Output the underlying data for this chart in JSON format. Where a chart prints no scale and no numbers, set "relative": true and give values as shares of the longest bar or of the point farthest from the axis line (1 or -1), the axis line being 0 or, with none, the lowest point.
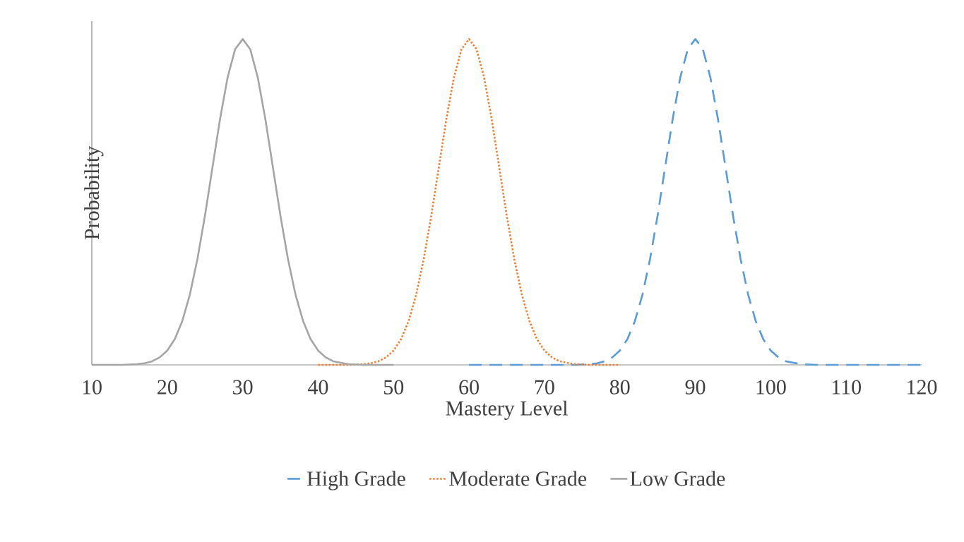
{
  "chart_data": {
    "type": "line",
    "relative": true,
    "xlabel": "Mastery Level",
    "ylabel": "Probability",
    "xlim": [
      10,
      120
    ],
    "xticks": [
      10,
      20,
      30,
      40,
      50,
      60,
      70,
      80,
      90,
      100,
      110,
      120
    ],
    "legend": "bottom",
    "marker": "none",
    "grid": false,
    "series": [
      {
        "name": "High Grade",
        "color": "#5b9bd5",
        "line_style": "dashed",
        "x": [
          60,
          66,
          70,
          74,
          76,
          77,
          78,
          79,
          80,
          81,
          82,
          83,
          84,
          85,
          86,
          87,
          88,
          89,
          90,
          91,
          92,
          93,
          94,
          95,
          96,
          97,
          98,
          99,
          100,
          101,
          102,
          104,
          106,
          110,
          114,
          120
        ],
        "values": [
          0,
          0,
          0,
          0,
          0.002,
          0.005,
          0.011,
          0.023,
          0.044,
          0.079,
          0.135,
          0.216,
          0.325,
          0.458,
          0.607,
          0.755,
          0.882,
          0.969,
          1,
          0.969,
          0.882,
          0.755,
          0.607,
          0.458,
          0.325,
          0.216,
          0.135,
          0.079,
          0.044,
          0.023,
          0.011,
          0.002,
          0,
          0,
          0,
          0
        ]
      },
      {
        "name": "Moderate Grade",
        "color": "#ed7d31",
        "line_style": "dotted",
        "x": [
          40,
          44,
          46,
          47,
          48,
          49,
          50,
          51,
          52,
          53,
          54,
          55,
          56,
          57,
          58,
          59,
          60,
          61,
          62,
          63,
          64,
          65,
          66,
          67,
          68,
          69,
          70,
          71,
          72,
          74,
          76,
          80
        ],
        "values": [
          0,
          0,
          0.002,
          0.005,
          0.011,
          0.023,
          0.044,
          0.079,
          0.135,
          0.216,
          0.325,
          0.458,
          0.607,
          0.755,
          0.882,
          0.969,
          1,
          0.969,
          0.882,
          0.755,
          0.607,
          0.458,
          0.325,
          0.216,
          0.135,
          0.079,
          0.044,
          0.023,
          0.011,
          0.002,
          0,
          0
        ]
      },
      {
        "name": "Low Grade",
        "color": "#a5a5a5",
        "line_style": "solid",
        "x": [
          10,
          14,
          16,
          17,
          18,
          19,
          20,
          21,
          22,
          23,
          24,
          25,
          26,
          27,
          28,
          29,
          30,
          31,
          32,
          33,
          34,
          35,
          36,
          37,
          38,
          39,
          40,
          41,
          42,
          44,
          46,
          50
        ],
        "values": [
          0,
          0,
          0.002,
          0.005,
          0.011,
          0.023,
          0.044,
          0.079,
          0.135,
          0.216,
          0.325,
          0.458,
          0.607,
          0.755,
          0.882,
          0.969,
          1,
          0.969,
          0.882,
          0.755,
          0.607,
          0.458,
          0.325,
          0.216,
          0.135,
          0.079,
          0.044,
          0.023,
          0.011,
          0.002,
          0,
          0
        ]
      }
    ]
  }
}
